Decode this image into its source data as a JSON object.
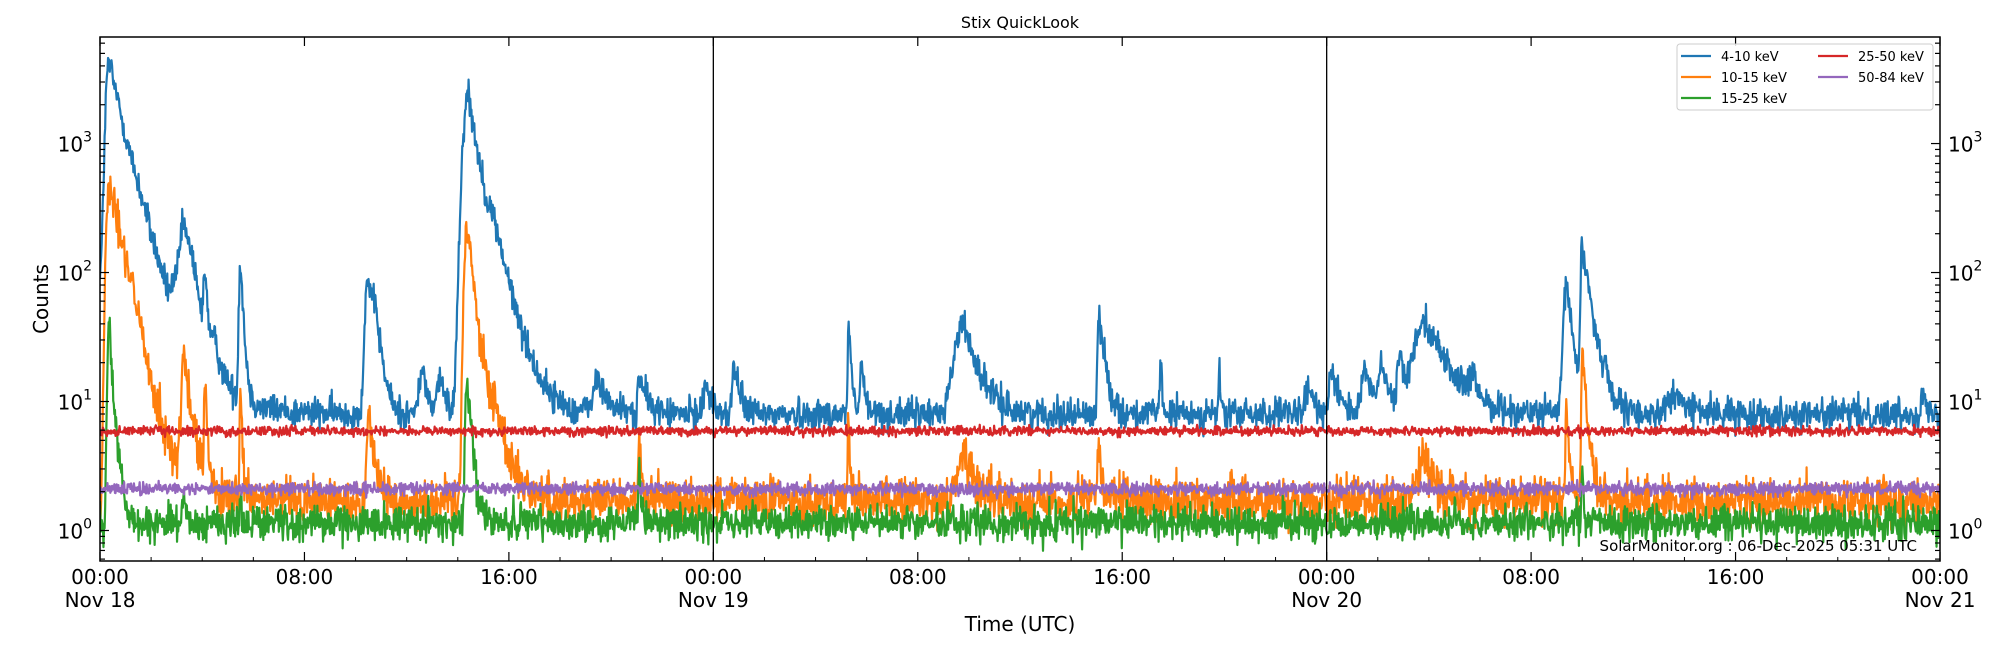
{
  "chart_data": {
    "type": "line",
    "title": "Stix QuickLook",
    "xlabel": "Time (UTC)",
    "ylabel": "Counts",
    "yscale": "log",
    "ylim": [
      0.58,
      6700
    ],
    "xlim_hours": [
      0,
      72
    ],
    "x_start": "Nov 18 00:00",
    "x_end": "Nov 21 00:00",
    "grid": false,
    "legend_position": "upper right",
    "legend_ncol": 2,
    "day_separators_hours": [
      24,
      48
    ],
    "x_ticks": [
      {
        "hour": 0,
        "time": "00:00",
        "date": "Nov 18"
      },
      {
        "hour": 8,
        "time": "08:00",
        "date": ""
      },
      {
        "hour": 16,
        "time": "16:00",
        "date": ""
      },
      {
        "hour": 24,
        "time": "00:00",
        "date": "Nov 19"
      },
      {
        "hour": 32,
        "time": "08:00",
        "date": ""
      },
      {
        "hour": 40,
        "time": "16:00",
        "date": ""
      },
      {
        "hour": 48,
        "time": "00:00",
        "date": "Nov 20"
      },
      {
        "hour": 56,
        "time": "08:00",
        "date": ""
      },
      {
        "hour": 64,
        "time": "16:00",
        "date": ""
      },
      {
        "hour": 72,
        "time": "00:00",
        "date": "Nov 21"
      }
    ],
    "y_ticks": [
      {
        "value": 1,
        "label_base": "10",
        "label_exp": "0"
      },
      {
        "value": 10,
        "label_base": "10",
        "label_exp": "1"
      },
      {
        "value": 100,
        "label_base": "10",
        "label_exp": "2"
      },
      {
        "value": 1000,
        "label_base": "10",
        "label_exp": "3"
      }
    ],
    "series": [
      {
        "name": "4-10 keV",
        "color": "#1f77b4",
        "baseline": 8.0,
        "noise": 0.06,
        "events": [
          {
            "hour": 0.0,
            "peak": 100,
            "rise": 0.1,
            "decay": 0.3
          },
          {
            "hour": 0.35,
            "peak": 4300,
            "rise": 0.1,
            "decay": 0.5
          },
          {
            "hour": 1.6,
            "peak": 60,
            "rise": 0.2,
            "decay": 1.2
          },
          {
            "hour": 2.9,
            "peak": 40,
            "rise": 0.1,
            "decay": 0.4
          },
          {
            "hour": 3.3,
            "peak": 200,
            "rise": 0.15,
            "decay": 0.3
          },
          {
            "hour": 3.6,
            "peak": 50,
            "rise": 0.1,
            "decay": 0.2
          },
          {
            "hour": 4.1,
            "peak": 85,
            "rise": 0.05,
            "decay": 0.1
          },
          {
            "hour": 4.5,
            "peak": 18,
            "rise": 0.1,
            "decay": 0.3
          },
          {
            "hour": 5.5,
            "peak": 125,
            "rise": 0.05,
            "decay": 0.1
          },
          {
            "hour": 10.5,
            "peak": 95,
            "rise": 0.1,
            "decay": 0.2
          },
          {
            "hour": 10.8,
            "peak": 35,
            "rise": 0.1,
            "decay": 0.2
          },
          {
            "hour": 12.6,
            "peak": 18,
            "rise": 0.1,
            "decay": 0.2
          },
          {
            "hour": 13.3,
            "peak": 15,
            "rise": 0.1,
            "decay": 0.2
          },
          {
            "hour": 14.4,
            "peak": 2500,
            "rise": 0.15,
            "decay": 0.35
          },
          {
            "hour": 15.5,
            "peak": 125,
            "rise": 0.4,
            "decay": 0.6
          },
          {
            "hour": 19.5,
            "peak": 14,
            "rise": 0.2,
            "decay": 0.4
          },
          {
            "hour": 21.1,
            "peak": 15,
            "rise": 0.05,
            "decay": 0.3
          },
          {
            "hour": 23.7,
            "peak": 14,
            "rise": 0.1,
            "decay": 0.2
          },
          {
            "hour": 24.8,
            "peak": 20,
            "rise": 0.05,
            "decay": 0.2
          },
          {
            "hour": 29.3,
            "peak": 44,
            "rise": 0.03,
            "decay": 0.08
          },
          {
            "hour": 29.8,
            "peak": 21,
            "rise": 0.05,
            "decay": 0.1
          },
          {
            "hour": 33.8,
            "peak": 40,
            "rise": 0.3,
            "decay": 0.5
          },
          {
            "hour": 39.1,
            "peak": 47,
            "rise": 0.05,
            "decay": 0.2
          },
          {
            "hour": 41.5,
            "peak": 21,
            "rise": 0.03,
            "decay": 0.05
          },
          {
            "hour": 43.8,
            "peak": 17,
            "rise": 0.03,
            "decay": 0.05
          },
          {
            "hour": 47.3,
            "peak": 13,
            "rise": 0.1,
            "decay": 0.2
          },
          {
            "hour": 48.2,
            "peak": 18,
            "rise": 0.1,
            "decay": 0.3
          },
          {
            "hour": 49.5,
            "peak": 18,
            "rise": 0.1,
            "decay": 0.2
          },
          {
            "hour": 50.2,
            "peak": 17,
            "rise": 0.2,
            "decay": 0.3
          },
          {
            "hour": 50.9,
            "peak": 22,
            "rise": 0.1,
            "decay": 0.2
          },
          {
            "hour": 51.8,
            "peak": 45,
            "rise": 0.3,
            "decay": 0.8
          },
          {
            "hour": 53.7,
            "peak": 13,
            "rise": 0.1,
            "decay": 0.2
          },
          {
            "hour": 57.4,
            "peak": 85,
            "rise": 0.1,
            "decay": 0.2
          },
          {
            "hour": 58.0,
            "peak": 165,
            "rise": 0.05,
            "decay": 0.3
          },
          {
            "hour": 58.9,
            "peak": 16,
            "rise": 0.05,
            "decay": 0.1
          },
          {
            "hour": 61.7,
            "peak": 11,
            "rise": 0.3,
            "decay": 0.5
          },
          {
            "hour": 71.3,
            "peak": 12,
            "rise": 0.05,
            "decay": 0.1
          }
        ]
      },
      {
        "name": "10-15 keV",
        "color": "#ff7f0e",
        "baseline": 1.7,
        "noise": 0.09,
        "events": [
          {
            "hour": 0.35,
            "peak": 560,
            "rise": 0.08,
            "decay": 0.45
          },
          {
            "hour": 3.3,
            "peak": 20,
            "rise": 0.1,
            "decay": 0.25
          },
          {
            "hour": 4.1,
            "peak": 14,
            "rise": 0.03,
            "decay": 0.08
          },
          {
            "hour": 5.5,
            "peak": 12,
            "rise": 0.03,
            "decay": 0.06
          },
          {
            "hour": 10.5,
            "peak": 8.5,
            "rise": 0.05,
            "decay": 0.2
          },
          {
            "hour": 14.35,
            "peak": 250,
            "rise": 0.08,
            "decay": 0.25
          },
          {
            "hour": 15.5,
            "peak": 7,
            "rise": 0.3,
            "decay": 0.5
          },
          {
            "hour": 21.1,
            "peak": 5,
            "rise": 0.03,
            "decay": 0.08
          },
          {
            "hour": 29.3,
            "peak": 8,
            "rise": 0.03,
            "decay": 0.05
          },
          {
            "hour": 33.8,
            "peak": 4,
            "rise": 0.2,
            "decay": 0.4
          },
          {
            "hour": 39.1,
            "peak": 4.5,
            "rise": 0.05,
            "decay": 0.1
          },
          {
            "hour": 51.8,
            "peak": 3.8,
            "rise": 0.2,
            "decay": 0.4
          },
          {
            "hour": 57.4,
            "peak": 8,
            "rise": 0.05,
            "decay": 0.1
          },
          {
            "hour": 58.0,
            "peak": 23,
            "rise": 0.03,
            "decay": 0.15
          }
        ]
      },
      {
        "name": "15-25 keV",
        "color": "#2ca02c",
        "baseline": 1.15,
        "noise": 0.07,
        "events": [
          {
            "hour": 0.35,
            "peak": 38,
            "rise": 0.05,
            "decay": 0.15
          },
          {
            "hour": 3.3,
            "peak": 1.9,
            "rise": 0.05,
            "decay": 0.1
          },
          {
            "hour": 5.5,
            "peak": 2.2,
            "rise": 0.02,
            "decay": 0.05
          },
          {
            "hour": 14.35,
            "peak": 17,
            "rise": 0.05,
            "decay": 0.15
          },
          {
            "hour": 21.1,
            "peak": 3.5,
            "rise": 0.02,
            "decay": 0.05
          },
          {
            "hour": 58.0,
            "peak": 3,
            "rise": 0.03,
            "decay": 0.05
          }
        ]
      },
      {
        "name": "25-50 keV",
        "color": "#d62728",
        "baseline": 5.9,
        "noise": 0.018,
        "events": []
      },
      {
        "name": "50-84 keV",
        "color": "#9467bd",
        "baseline": 2.1,
        "noise": 0.025,
        "events": []
      }
    ],
    "annotation": "SolarMonitor.org : 06-Dec-2025 05:31 UTC"
  }
}
